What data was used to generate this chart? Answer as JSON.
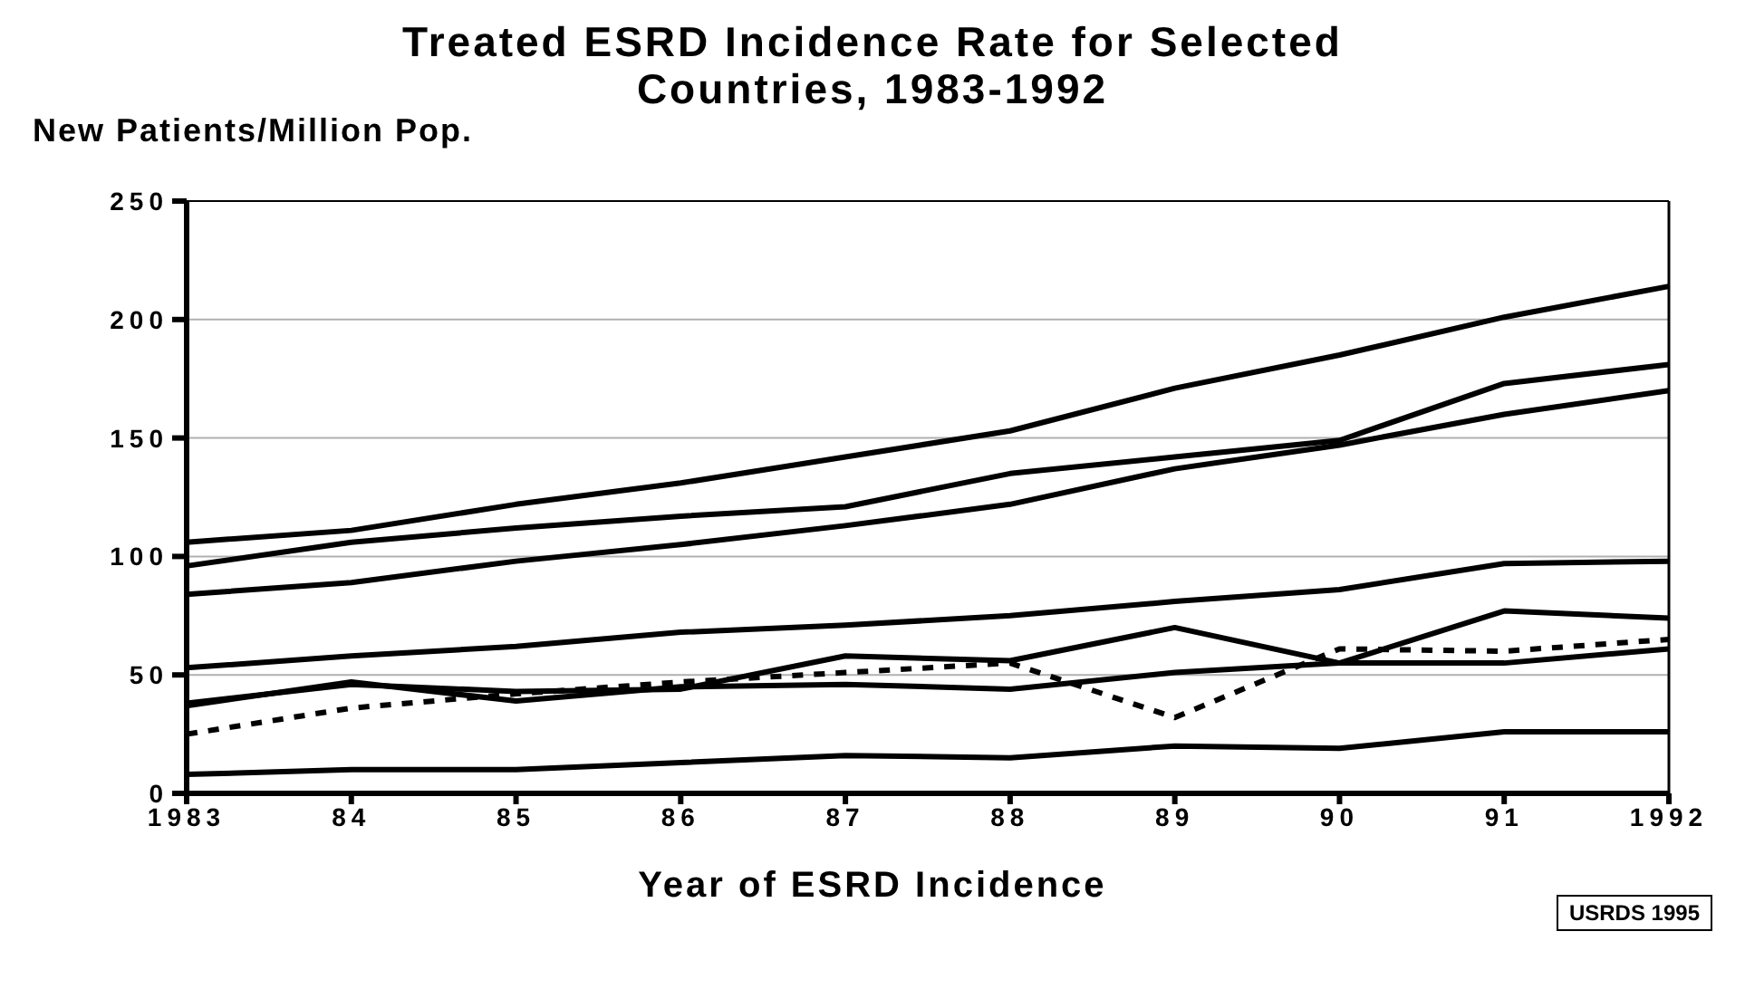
{
  "chart_data": {
    "type": "line",
    "title": "Treated ESRD Incidence Rate for Selected Countries, 1983-1992",
    "xlabel": "Year of ESRD Incidence",
    "ylabel": "New Patients/Million Pop.",
    "annotations": [
      "USRDS 1995"
    ],
    "categories": [
      "1983",
      "84",
      "85",
      "86",
      "87",
      "88",
      "89",
      "90",
      "91",
      "1992"
    ],
    "ylim": [
      0,
      250
    ],
    "yticks": [
      0,
      50,
      100,
      150,
      200,
      250
    ],
    "grid": "y",
    "legend": false,
    "marker": "none",
    "series": [
      {
        "color": "#000000",
        "values": [
          106,
          111,
          122,
          131,
          142,
          153,
          171,
          185,
          201,
          214
        ]
      },
      {
        "color": "#000000",
        "values": [
          96,
          106,
          112,
          117,
          121,
          135,
          142,
          149,
          173,
          181
        ]
      },
      {
        "color": "#000000",
        "values": [
          84,
          89,
          98,
          105,
          113,
          122,
          137,
          147,
          160,
          170
        ]
      },
      {
        "color": "#000000",
        "values": [
          53,
          58,
          62,
          68,
          71,
          75,
          81,
          86,
          97,
          98
        ]
      },
      {
        "color": "#000000",
        "values": [
          38,
          46,
          43,
          44,
          58,
          56,
          70,
          55,
          77,
          74
        ]
      },
      {
        "color": "#000000",
        "values": [
          37,
          47,
          39,
          45,
          46,
          44,
          51,
          55,
          55,
          61
        ]
      },
      {
        "color": "#000000",
        "line_style": "dashed",
        "values": [
          25,
          36,
          42,
          47,
          51,
          55,
          32,
          61,
          60,
          65
        ]
      },
      {
        "color": "#000000",
        "values": [
          8,
          10,
          10,
          13,
          16,
          15,
          20,
          19,
          26,
          26
        ]
      }
    ]
  }
}
